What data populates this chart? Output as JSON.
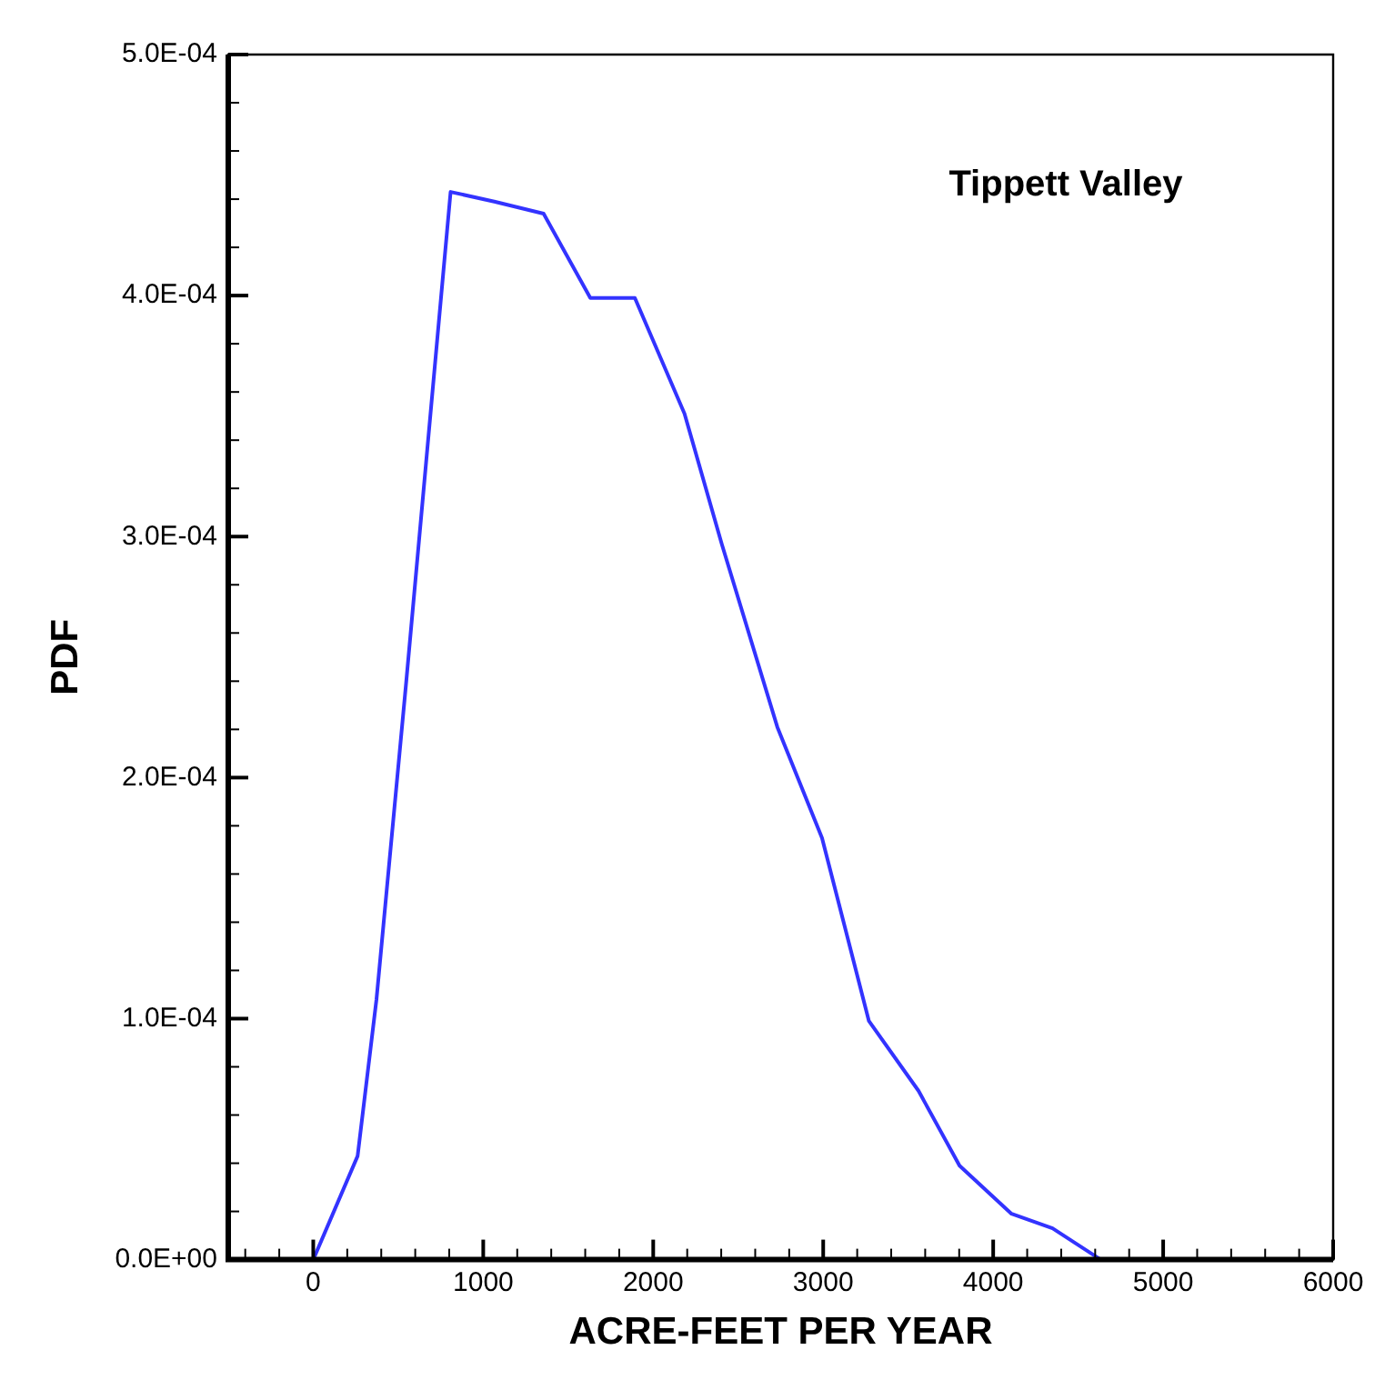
{
  "chart_data": {
    "type": "line",
    "title": "Tippett Valley",
    "xlabel": "ACRE-FEET PER YEAR",
    "ylabel": "PDF",
    "x": [
      0,
      261,
      372,
      546,
      808,
      1065,
      1355,
      1630,
      1892,
      2184,
      2403,
      2730,
      2993,
      3269,
      3561,
      3802,
      4108,
      4349,
      4633,
      5157
    ],
    "series": [
      {
        "color": "#3333ff",
        "values": [
          0,
          4.3e-05,
          0.000108,
          0.000239,
          0.000443,
          0.000439,
          0.000434,
          0.000399,
          0.000399,
          0.000351,
          0.000297,
          0.000221,
          0.000175,
          9.9e-05,
          7e-05,
          3.9e-05,
          1.9e-05,
          1.3e-05,
          0,
          0
        ]
      }
    ],
    "xlim": [
      -500,
      6000
    ],
    "xticks": [
      {
        "value": -400,
        "label": null
      },
      {
        "value": -200,
        "label": null
      },
      0,
      {
        "value": 200,
        "label": null
      },
      {
        "value": 400,
        "label": null
      },
      {
        "value": 600,
        "label": null
      },
      {
        "value": 800,
        "label": null
      },
      1000,
      {
        "value": 1200,
        "label": null
      },
      {
        "value": 1400,
        "label": null
      },
      {
        "value": 1600,
        "label": null
      },
      {
        "value": 1800,
        "label": null
      },
      2000,
      {
        "value": 2200,
        "label": null
      },
      {
        "value": 2400,
        "label": null
      },
      {
        "value": 2600,
        "label": null
      },
      {
        "value": 2800,
        "label": null
      },
      3000,
      {
        "value": 3200,
        "label": null
      },
      {
        "value": 3400,
        "label": null
      },
      {
        "value": 3600,
        "label": null
      },
      {
        "value": 3800,
        "label": null
      },
      4000,
      {
        "value": 4200,
        "label": null
      },
      {
        "value": 4400,
        "label": null
      },
      {
        "value": 4600,
        "label": null
      },
      {
        "value": 4800,
        "label": null
      },
      5000,
      {
        "value": 5200,
        "label": null
      },
      {
        "value": 5400,
        "label": null
      },
      {
        "value": 5600,
        "label": null
      },
      {
        "value": 5800,
        "label": null
      },
      6000
    ],
    "ylim": [
      0,
      0.0005
    ],
    "yticks": [
      {
        "value": 0,
        "label": "0.0E+00"
      },
      {
        "value": 2e-05,
        "label": null
      },
      {
        "value": 4e-05,
        "label": null
      },
      {
        "value": 6e-05,
        "label": null
      },
      {
        "value": 8e-05,
        "label": null
      },
      {
        "value": 0.0001,
        "label": "1.0E-04"
      },
      {
        "value": 0.00012,
        "label": null
      },
      {
        "value": 0.00014,
        "label": null
      },
      {
        "value": 0.00016,
        "label": null
      },
      {
        "value": 0.00018,
        "label": null
      },
      {
        "value": 0.0002,
        "label": "2.0E-04"
      },
      {
        "value": 0.00022,
        "label": null
      },
      {
        "value": 0.00024,
        "label": null
      },
      {
        "value": 0.00026,
        "label": null
      },
      {
        "value": 0.00028,
        "label": null
      },
      {
        "value": 0.0003,
        "label": "3.0E-04"
      },
      {
        "value": 0.00032,
        "label": null
      },
      {
        "value": 0.00034,
        "label": null
      },
      {
        "value": 0.00036,
        "label": null
      },
      {
        "value": 0.00038,
        "label": null
      },
      {
        "value": 0.0004,
        "label": "4.0E-04"
      },
      {
        "value": 0.00042,
        "label": null
      },
      {
        "value": 0.00044,
        "label": null
      },
      {
        "value": 0.00046,
        "label": null
      },
      {
        "value": 0.00048,
        "label": null
      },
      {
        "value": 0.0005,
        "label": "5.0E-04"
      }
    ],
    "grid": false,
    "legend": false,
    "marker": "none",
    "line_style": "solid"
  }
}
